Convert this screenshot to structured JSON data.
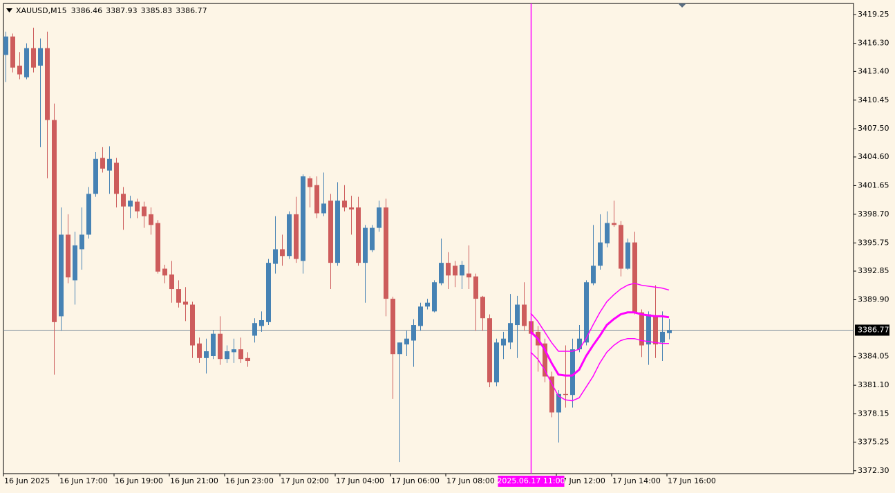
{
  "chart_data": {
    "type": "candlestick",
    "title": "XAUUSD,M15",
    "categories": [
      "16 Jun 2025",
      null,
      null,
      null,
      null,
      null,
      null,
      null,
      "16 Jun 17:00",
      null,
      null,
      null,
      null,
      null,
      null,
      null,
      "16 Jun 19:00",
      null,
      null,
      null,
      null,
      null,
      null,
      null,
      "16 Jun 21:00",
      null,
      null,
      null,
      null,
      null,
      null,
      null,
      "16 Jun 23:00",
      null,
      null,
      null,
      null,
      null,
      null,
      null,
      "17 Jun 02:00",
      null,
      null,
      null,
      null,
      null,
      null,
      null,
      "17 Jun 04:00",
      null,
      null,
      null,
      null,
      null,
      null,
      null,
      "17 Jun 06:00",
      null,
      null,
      null,
      null,
      null,
      null,
      null,
      "17 Jun 08:00",
      null,
      null,
      null,
      null,
      null,
      null,
      null,
      null,
      null,
      null,
      null,
      null,
      null,
      null,
      null,
      "17 Jun 12:00",
      null,
      null,
      null,
      null,
      null,
      null,
      null,
      "17 Jun 14:00",
      null,
      null,
      null,
      null,
      null,
      null,
      null,
      "17 Jun 16:00"
    ],
    "open": [
      3415.1,
      3417.0,
      3414.0,
      3412.8,
      3415.8,
      3414.0,
      3415.8,
      3408.4,
      3388.2,
      3396.6,
      3391.9,
      3395.1,
      3396.6,
      3400.8,
      3404.5,
      3403.2,
      3404.0,
      3400.8,
      3399.5,
      3400.0,
      3399.5,
      3398.7,
      3397.8,
      3393.1,
      3392.5,
      3391.0,
      3389.7,
      3389.4,
      3385.4,
      3383.9,
      3384.1,
      3386.4,
      3383.8,
      3384.5,
      3384.8,
      3383.9,
      3386.2,
      3387.2,
      3387.6,
      3393.6,
      3395.1,
      3394.4,
      3398.7,
      3393.9,
      3402.4,
      3401.7,
      3398.8,
      3400.1,
      3393.7,
      3400.1,
      3399.4,
      3399.4,
      3393.7,
      3395.0,
      3397.3,
      3399.4,
      3390.0,
      3384.3,
      3385.3,
      3385.7,
      3387.2,
      3389.2,
      3388.7,
      3391.6,
      3393.7,
      3393.4,
      3392.4,
      3392.6,
      3392.3,
      3390.2,
      3388.0,
      3381.4,
      3385.2,
      3385.5,
      3387.3,
      3389.4,
      3387.7,
      3386.6,
      3385.4,
      3382.0,
      3378.3,
      3380.2,
      3380.1,
      3384.8,
      3385.5,
      3391.6,
      3393.4,
      3395.7,
      3397.8,
      3397.6,
      3393.1,
      3395.8,
      3388.6,
      3385.3,
      3388.2,
      3385.5,
      3386.46
    ],
    "high": [
      3417.5,
      3417.3,
      3415.4,
      3416.3,
      3417.9,
      3416.8,
      3417.5,
      3410.1,
      3399.4,
      3398.7,
      3396.9,
      3399.4,
      3401.5,
      3405.1,
      3405.6,
      3405.7,
      3404.5,
      3401.5,
      3400.6,
      3400.3,
      3400.0,
      3399.4,
      3398.1,
      3393.5,
      3393.9,
      3391.9,
      3391.2,
      3389.7,
      3386.0,
      3385.9,
      3386.8,
      3388.2,
      3385.2,
      3385.9,
      3386.0,
      3384.5,
      3388.0,
      3388.7,
      3394.1,
      3398.5,
      3396.6,
      3399.0,
      3400.5,
      3402.8,
      3402.6,
      3402.6,
      3403.0,
      3400.8,
      3402.0,
      3401.7,
      3400.6,
      3400.5,
      3397.6,
      3397.6,
      3400.1,
      3400.3,
      3390.2,
      3385.5,
      3386.7,
      3387.9,
      3389.6,
      3390.0,
      3391.9,
      3396.2,
      3394.8,
      3393.9,
      3393.9,
      3395.5,
      3392.6,
      3390.3,
      3388.4,
      3385.9,
      3386.6,
      3390.5,
      3390.3,
      3391.7,
      3388.9,
      3387.2,
      3385.9,
      3382.5,
      3380.6,
      3385.2,
      3385.9,
      3387.3,
      3391.9,
      3397.6,
      3398.7,
      3399.0,
      3400.1,
      3398.0,
      3396.2,
      3396.9,
      3388.9,
      3388.7,
      3391.4,
      3388.7,
      3387.93
    ],
    "low": [
      3412.3,
      3413.3,
      3412.6,
      3412.6,
      3413.3,
      3405.6,
      3402.4,
      3382.2,
      3386.7,
      3391.6,
      3389.4,
      3393.0,
      3396.2,
      3400.5,
      3403.0,
      3400.8,
      3399.4,
      3397.1,
      3398.3,
      3398.3,
      3397.3,
      3396.6,
      3392.6,
      3391.6,
      3389.6,
      3389.1,
      3387.7,
      3383.9,
      3383.4,
      3382.3,
      3383.8,
      3383.2,
      3383.4,
      3383.4,
      3383.4,
      3383.0,
      3385.5,
      3386.6,
      3387.3,
      3392.6,
      3393.4,
      3394.1,
      3393.7,
      3392.6,
      3399.4,
      3398.3,
      3398.5,
      3391.0,
      3393.4,
      3399.0,
      3396.6,
      3393.4,
      3389.6,
      3394.8,
      3396.9,
      3388.2,
      3379.7,
      3373.2,
      3384.1,
      3383.0,
      3386.7,
      3388.9,
      3388.6,
      3391.4,
      3391.0,
      3391.2,
      3391.0,
      3391.0,
      3386.7,
      3386.7,
      3380.9,
      3381.0,
      3383.8,
      3384.8,
      3383.9,
      3386.7,
      3385.7,
      3382.5,
      3381.4,
      3377.8,
      3375.2,
      3378.8,
      3378.8,
      3384.5,
      3385.2,
      3391.4,
      3393.0,
      3395.3,
      3397.4,
      3392.3,
      3393.0,
      3388.4,
      3384.0,
      3383.2,
      3383.9,
      3383.6,
      3385.83
    ],
    "close": [
      3417.0,
      3413.8,
      3413.1,
      3415.8,
      3413.8,
      3415.8,
      3408.4,
      3387.6,
      3396.6,
      3392.2,
      3395.5,
      3396.6,
      3400.8,
      3404.4,
      3403.4,
      3404.4,
      3400.8,
      3399.5,
      3400.1,
      3399.0,
      3398.5,
      3397.6,
      3392.8,
      3392.4,
      3391.0,
      3389.6,
      3389.4,
      3385.2,
      3383.9,
      3384.6,
      3386.4,
      3383.8,
      3384.6,
      3384.8,
      3383.8,
      3383.6,
      3387.5,
      3387.8,
      3393.7,
      3395.1,
      3394.4,
      3398.7,
      3394.1,
      3402.6,
      3401.5,
      3398.8,
      3399.8,
      3393.7,
      3400.1,
      3399.4,
      3399.2,
      3393.7,
      3397.3,
      3397.3,
      3399.4,
      3390.0,
      3384.3,
      3385.5,
      3385.9,
      3387.3,
      3389.2,
      3389.6,
      3391.7,
      3393.7,
      3392.4,
      3392.4,
      3393.5,
      3392.2,
      3390.0,
      3388.0,
      3381.4,
      3385.5,
      3385.9,
      3387.5,
      3389.4,
      3387.2,
      3386.4,
      3385.2,
      3382.0,
      3378.3,
      3380.2,
      3380.1,
      3384.8,
      3385.9,
      3391.7,
      3393.4,
      3395.8,
      3397.8,
      3397.6,
      3393.1,
      3395.8,
      3388.6,
      3385.2,
      3388.4,
      3385.3,
      3386.6,
      3386.77
    ],
    "up_color": "#4682b4",
    "down_color": "#cd5c5c",
    "overlays": [
      {
        "color": "#ff00ff",
        "values": [
          null,
          null,
          null,
          null,
          null,
          null,
          null,
          null,
          null,
          null,
          null,
          null,
          null,
          null,
          null,
          null,
          null,
          null,
          null,
          null,
          null,
          null,
          null,
          null,
          null,
          null,
          null,
          null,
          null,
          null,
          null,
          null,
          null,
          null,
          null,
          null,
          null,
          null,
          null,
          null,
          null,
          null,
          null,
          null,
          null,
          null,
          null,
          null,
          null,
          null,
          null,
          null,
          null,
          null,
          null,
          null,
          null,
          null,
          null,
          null,
          null,
          null,
          null,
          null,
          null,
          null,
          null,
          null,
          null,
          null,
          null,
          null,
          null,
          null,
          null,
          null,
          3386.6,
          3385.9,
          3384.8,
          3383.4,
          3382.2,
          3382.1,
          3382.1,
          3382.7,
          3384.1,
          3385.2,
          3386.2,
          3387.3,
          3387.9,
          3388.4,
          3388.6,
          3388.6,
          3388.4,
          3388.3,
          3388.2,
          3388.2,
          3388.1
        ]
      },
      {
        "color": "#ff00ff",
        "values": [
          null,
          null,
          null,
          null,
          null,
          null,
          null,
          null,
          null,
          null,
          null,
          null,
          null,
          null,
          null,
          null,
          null,
          null,
          null,
          null,
          null,
          null,
          null,
          null,
          null,
          null,
          null,
          null,
          null,
          null,
          null,
          null,
          null,
          null,
          null,
          null,
          null,
          null,
          null,
          null,
          null,
          null,
          null,
          null,
          null,
          null,
          null,
          null,
          null,
          null,
          null,
          null,
          null,
          null,
          null,
          null,
          null,
          null,
          null,
          null,
          null,
          null,
          null,
          null,
          null,
          null,
          null,
          null,
          null,
          null,
          null,
          null,
          null,
          null,
          null,
          null,
          3388.5,
          3387.7,
          3386.6,
          3385.5,
          3384.6,
          3384.6,
          3384.6,
          3384.8,
          3385.9,
          3387.3,
          3388.6,
          3389.7,
          3390.4,
          3391.0,
          3391.4,
          3391.6,
          3391.4,
          3391.3,
          3391.2,
          3391.1,
          3390.9
        ]
      },
      {
        "color": "#ff00ff",
        "values": [
          null,
          null,
          null,
          null,
          null,
          null,
          null,
          null,
          null,
          null,
          null,
          null,
          null,
          null,
          null,
          null,
          null,
          null,
          null,
          null,
          null,
          null,
          null,
          null,
          null,
          null,
          null,
          null,
          null,
          null,
          null,
          null,
          null,
          null,
          null,
          null,
          null,
          null,
          null,
          null,
          null,
          null,
          null,
          null,
          null,
          null,
          null,
          null,
          null,
          null,
          null,
          null,
          null,
          null,
          null,
          null,
          null,
          null,
          null,
          null,
          null,
          null,
          null,
          null,
          null,
          null,
          null,
          null,
          null,
          null,
          null,
          null,
          null,
          null,
          null,
          null,
          3384.5,
          3383.8,
          3382.7,
          3381.3,
          3380.0,
          3379.6,
          3379.5,
          3379.8,
          3380.9,
          3382.0,
          3383.4,
          3384.5,
          3385.2,
          3385.7,
          3385.9,
          3385.9,
          3385.7,
          3385.6,
          3385.5,
          3385.4,
          3385.4
        ]
      }
    ],
    "marker_label": "2025.06.17 11:00",
    "marker_color": "#ff00ff",
    "price_line_color": "#778899",
    "background": "#fdf5e6",
    "ylim": [
      3372.0,
      3420.4
    ],
    "yticks": [
      3419.25,
      {
        "value": 3416.3,
        "label": "3416.30"
      },
      {
        "value": 3413.4,
        "label": "3413.40"
      },
      3410.45,
      {
        "value": 3407.5,
        "label": "3407.50"
      },
      {
        "value": 3404.6,
        "label": "3404.60"
      },
      3401.65,
      {
        "value": 3398.7,
        "label": "3398.70"
      },
      3395.75,
      3392.85,
      {
        "value": 3389.9,
        "label": "3389.90"
      },
      3384.05,
      {
        "value": 3381.1,
        "label": "3381.10"
      },
      3378.15,
      3375.25,
      {
        "value": 3372.3,
        "label": "3372.30"
      }
    ],
    "grid": false
  }
}
